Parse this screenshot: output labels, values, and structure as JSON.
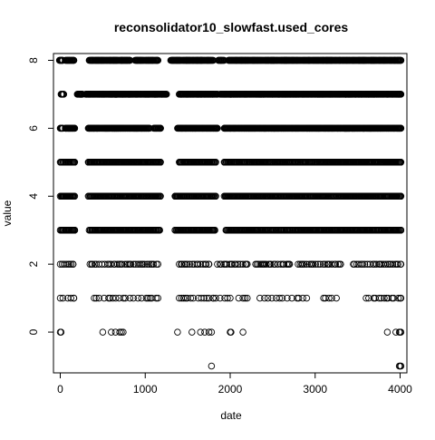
{
  "chart_data": {
    "type": "scatter",
    "title": "reconsolidator10_slowfast.used_cores",
    "xlabel": "date",
    "ylabel": "value",
    "xlim": [
      -80,
      4080
    ],
    "ylim": [
      -1.2,
      8.2
    ],
    "x_ticks": [
      0,
      1000,
      2000,
      3000,
      4000
    ],
    "y_ticks": [
      0,
      2,
      4,
      6,
      8
    ],
    "grid": false,
    "marker": "open-circle",
    "levels": [
      {
        "value": 8,
        "segments": [
          [
            -10,
            30
          ],
          [
            60,
            160
          ],
          [
            340,
            820
          ],
          [
            880,
            1150
          ],
          [
            1300,
            1800
          ],
          [
            1860,
            1930
          ],
          [
            1980,
            4010
          ]
        ],
        "density": "high"
      },
      {
        "value": 7,
        "segments": [
          [
            10,
            40
          ],
          [
            200,
            260
          ],
          [
            300,
            1250
          ],
          [
            1400,
            1850
          ],
          [
            1880,
            4010
          ]
        ],
        "density": "high"
      },
      {
        "value": 6,
        "segments": [
          [
            0,
            30
          ],
          [
            60,
            170
          ],
          [
            330,
            1050
          ],
          [
            1100,
            1180
          ],
          [
            1380,
            1850
          ],
          [
            1930,
            4010
          ]
        ],
        "density": "high"
      },
      {
        "value": 5,
        "segments": [
          [
            0,
            170
          ],
          [
            330,
            1180
          ],
          [
            1400,
            1830
          ],
          [
            1930,
            4010
          ]
        ],
        "density": "medium"
      },
      {
        "value": 4,
        "segments": [
          [
            0,
            170
          ],
          [
            330,
            1180
          ],
          [
            1350,
            1830
          ],
          [
            1930,
            4010
          ]
        ],
        "density": "medium"
      },
      {
        "value": 3,
        "segments": [
          [
            0,
            170
          ],
          [
            340,
            1170
          ],
          [
            1350,
            1820
          ],
          [
            1950,
            4010
          ]
        ],
        "density": "medium"
      },
      {
        "value": 2,
        "segments": [
          [
            0,
            150
          ],
          [
            350,
            1150
          ],
          [
            1400,
            1750
          ],
          [
            1850,
            2200
          ],
          [
            2300,
            2700
          ],
          [
            2800,
            3300
          ],
          [
            3450,
            4010
          ]
        ],
        "density": "low"
      },
      {
        "value": 1,
        "segments": [
          [
            0,
            160
          ],
          [
            400,
            1150
          ],
          [
            1400,
            1800
          ],
          [
            1830,
            2000
          ],
          [
            2100,
            2200
          ],
          [
            2350,
            2900
          ],
          [
            3100,
            3250
          ],
          [
            3600,
            4010
          ]
        ],
        "density": "sparse"
      },
      {
        "value": 0,
        "points": [
          0,
          10,
          500,
          600,
          650,
          700,
          720,
          740,
          1380,
          1550,
          1650,
          1700,
          1750,
          1780,
          2000,
          2010,
          2150,
          3850,
          3950,
          3990,
          4000,
          4010
        ]
      },
      {
        "value": -1,
        "points": [
          1780,
          3990,
          4000,
          4010
        ]
      }
    ]
  }
}
